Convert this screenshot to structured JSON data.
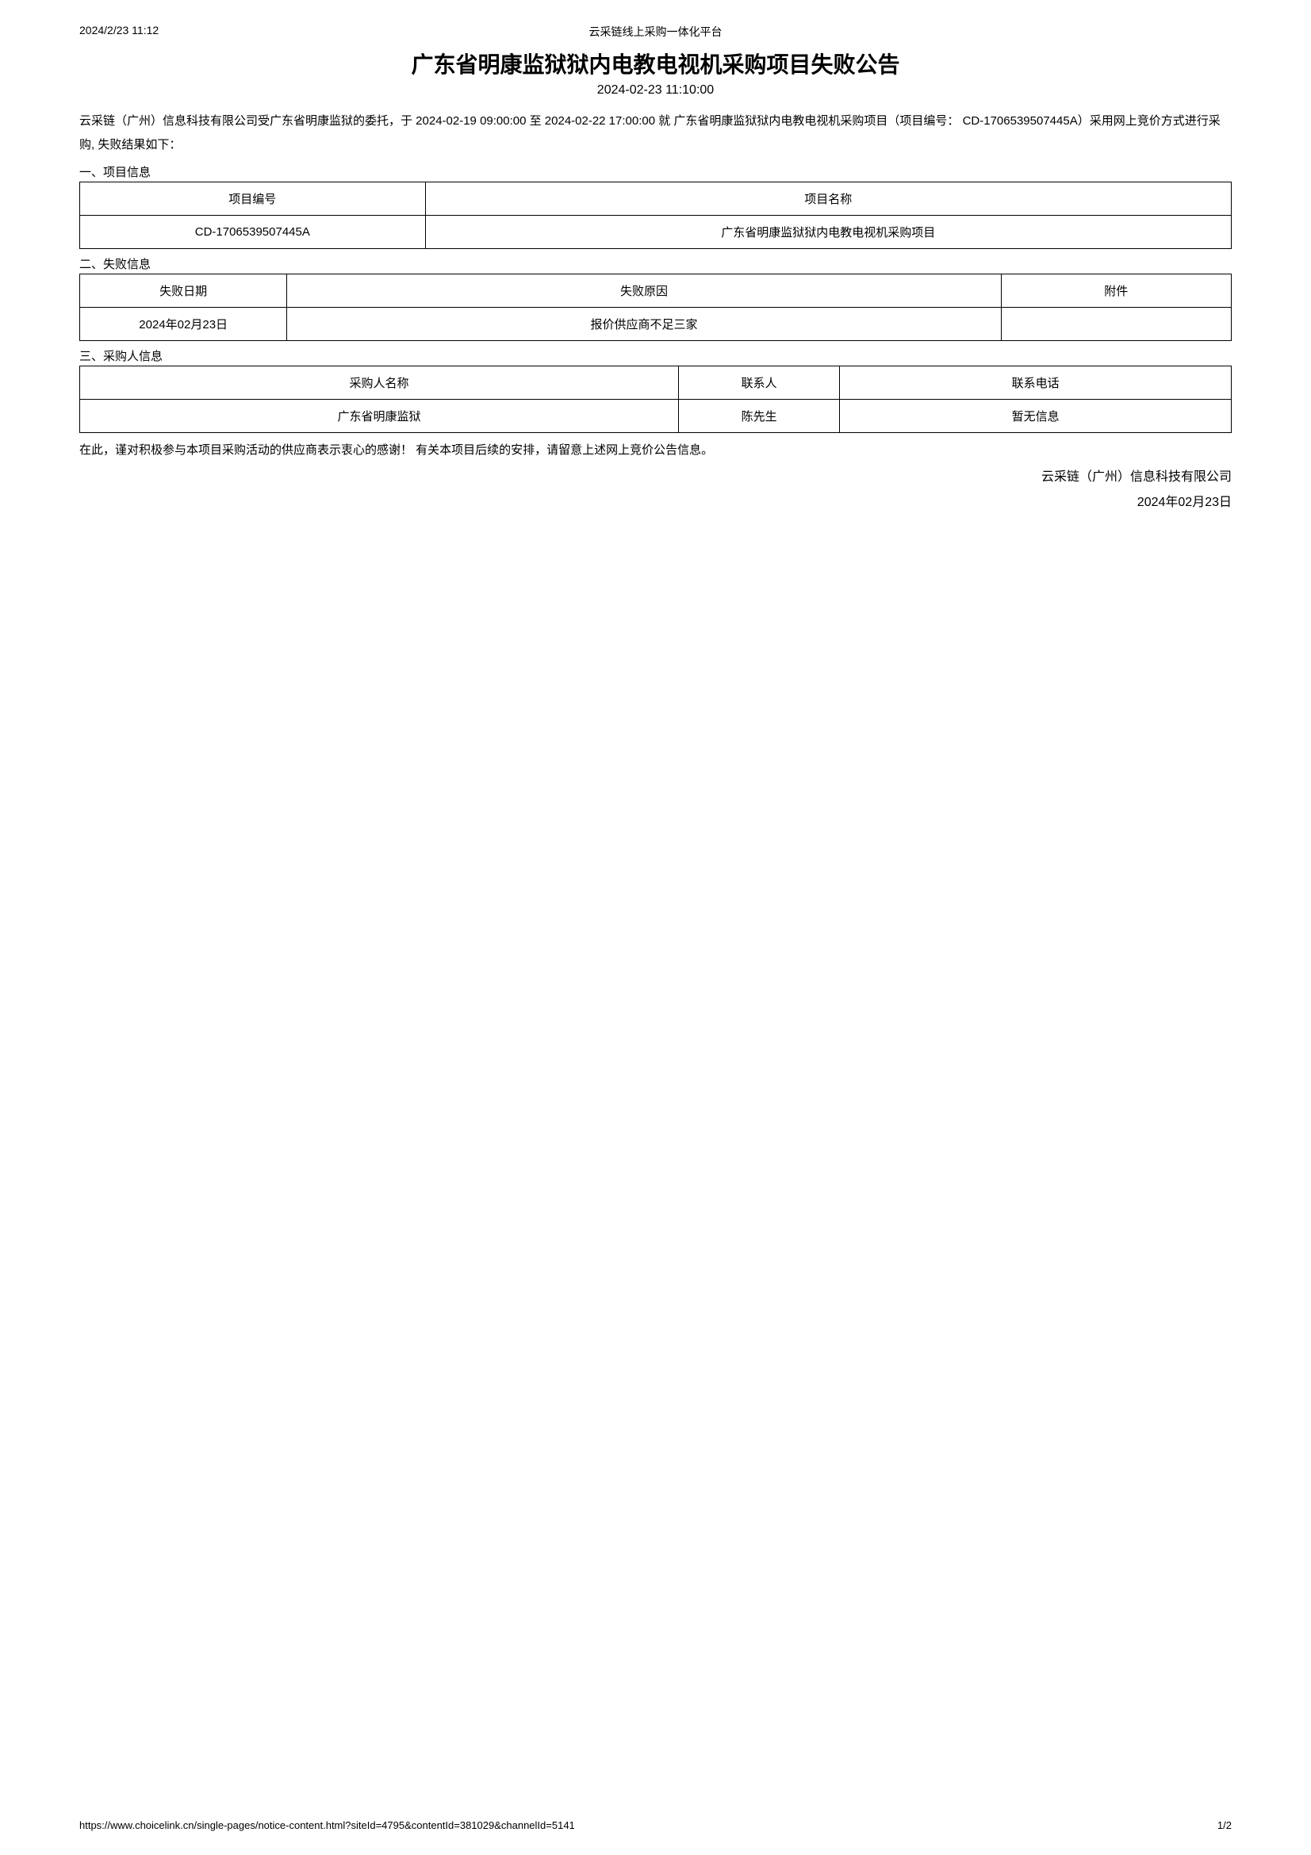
{
  "header": {
    "timestamp": "2024/2/23 11:12",
    "platform": "云采链线上采购一体化平台"
  },
  "title": "广东省明康监狱狱内电教电视机采购项目失败公告",
  "subtitle": "2024-02-23 11:10:00",
  "intro": "云采链（广州）信息科技有限公司受广东省明康监狱的委托，于 2024-02-19 09:00:00 至 2024-02-22 17:00:00 就 广东省明康监狱狱内电教电视机采购项目（项目编号： CD-1706539507445A）采用网上竞价方式进行采购, 失败结果如下：",
  "section1": {
    "label": "一、项目信息",
    "col1_header": "项目编号",
    "col2_header": "项目名称",
    "col1_value": "CD-1706539507445A",
    "col2_value": "广东省明康监狱狱内电教电视机采购项目"
  },
  "section2": {
    "label": "二、失败信息",
    "col1_header": "失败日期",
    "col2_header": "失败原因",
    "col3_header": "附件",
    "col1_value": "2024年02月23日",
    "col2_value": "报价供应商不足三家",
    "col3_value": ""
  },
  "section3": {
    "label": "三、采购人信息",
    "col1_header": "采购人名称",
    "col2_header": "联系人",
    "col3_header": "联系电话",
    "col1_value": "广东省明康监狱",
    "col2_value": "陈先生",
    "col3_value": "暂无信息"
  },
  "closing": "在此，谨对积极参与本项目采购活动的供应商表示衷心的感谢！ 有关本项目后续的安排，请留意上述网上竞价公告信息。",
  "sign": {
    "company": "云采链（广州）信息科技有限公司",
    "date": "2024年02月23日"
  },
  "footer": {
    "url": "https://www.choicelink.cn/single-pages/notice-content.html?siteId=4795&contentId=381029&channelId=5141",
    "page": "1/2"
  },
  "table_layout": {
    "t1_col1_width": "30%",
    "t1_col2_width": "70%",
    "t2_col1_width": "18%",
    "t2_col2_width": "62%",
    "t2_col3_width": "20%",
    "t3_col1_width": "52%",
    "t3_col2_width": "14%",
    "t3_col3_width": "34%"
  }
}
